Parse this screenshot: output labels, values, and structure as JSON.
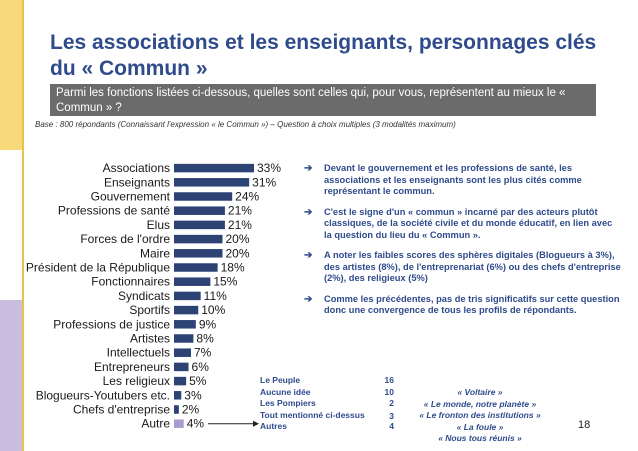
{
  "header": {
    "title": "Les associations et les enseignants, personnages clés du « Commun »",
    "question": "Parmi les fonctions listées ci-dessous, quelles sont celles qui, pour vous, représentent au mieux le « Commun » ?",
    "base": "Base : 800 répondants (Connaissant l'expression « le Commun ») – Question à choix multiples (3 modalités maximum)"
  },
  "chart_data": {
    "type": "bar",
    "orientation": "horizontal",
    "categories": [
      "Associations",
      "Enseignants",
      "Gouvernement",
      "Professions de santé",
      "Elus",
      "Forces de l'ordre",
      "Maire",
      "Président de la République",
      "Fonctionnaires",
      "Syndicats",
      "Sportifs",
      "Professions de justice",
      "Artistes",
      "Intellectuels",
      "Entrepreneurs",
      "Les religieux",
      "Blogueurs-Youtubers etc.",
      "Chefs d'entreprise",
      "Autre"
    ],
    "values": [
      33,
      31,
      24,
      21,
      21,
      20,
      20,
      18,
      15,
      11,
      10,
      9,
      8,
      7,
      6,
      5,
      3,
      2,
      4
    ],
    "value_labels": [
      "33%",
      "31%",
      "24%",
      "21%",
      "21%",
      "20%",
      "20%",
      "18%",
      "15%",
      "11%",
      "10%",
      "9%",
      "8%",
      "7%",
      "6%",
      "5%",
      "3%",
      "2%",
      "4%"
    ],
    "unit": "%",
    "colors": {
      "bar": "#2d4373",
      "other": "#a99bd0"
    }
  },
  "bullets": [
    "Devant le gouvernement et les professions de santé, les associations et les enseignants sont les plus cités comme représentant le commun.",
    "C'est le signe d'un « commun » incarné par des acteurs plutôt classiques, de la société civile et du monde éducatif, en lien avec la question du lieu du « Commun ».",
    "A noter les faibles scores des sphères digitales (Blogueurs à 3%), des artistes (8%), de l'entreprenariat (6%) ou des chefs d'entreprise (2%), des religieux (5%)",
    "Comme les précédentes, pas de tris significatifs sur cette question donc une convergence de tous les profils de répondants."
  ],
  "other_breakdown": [
    {
      "label": "Le Peuple",
      "count": "16"
    },
    {
      "label": "Aucune idée",
      "count": "10"
    },
    {
      "label": "Les Pompiers",
      "count": "2"
    },
    {
      "label": "Tout mentionné ci-dessus",
      "count": "3"
    },
    {
      "label": "Autres",
      "count": "4"
    }
  ],
  "quotes": [
    "« Voltaire »",
    "« Le monde, notre planète »",
    "« Le fronton des institutions »",
    "« La foule »",
    "« Nous tous réunis »"
  ],
  "page_number": "18",
  "icons": {
    "bullet": "arrow-right-icon",
    "other_pointer": "arrow-right-icon"
  }
}
